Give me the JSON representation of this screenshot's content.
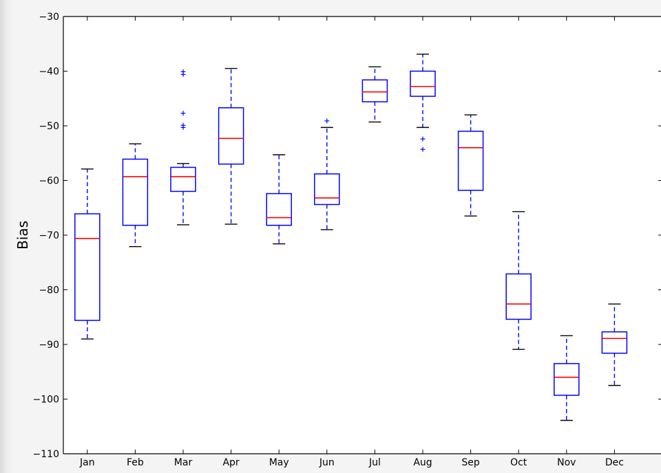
{
  "chart_data": {
    "type": "box",
    "title": "",
    "xlabel": "",
    "ylabel": "Bias",
    "ylim": [
      -110,
      -30
    ],
    "yticks": [
      -30,
      -40,
      -50,
      -60,
      -70,
      -80,
      -90,
      -100,
      -110
    ],
    "grid": false,
    "legend": "none",
    "colors": {
      "box": "#0000ff",
      "median": "#ff0000",
      "cap": "#000000",
      "axis": "#000000",
      "plot_bg": "#ffffff"
    },
    "categories": [
      "Jan",
      "Feb",
      "Mar",
      "Apr",
      "May",
      "Jun",
      "Jul",
      "Aug",
      "Sep",
      "Oct",
      "Nov",
      "Dec"
    ],
    "boxes": [
      {
        "label": "Jan",
        "whisker_low": -89.0,
        "q1": -85.6,
        "median": -70.6,
        "q3": -66.1,
        "whisker_high": -57.9,
        "fliers": []
      },
      {
        "label": "Feb",
        "whisker_low": -72.1,
        "q1": -68.2,
        "median": -59.3,
        "q3": -56.1,
        "whisker_high": -53.3,
        "fliers": []
      },
      {
        "label": "Mar",
        "whisker_low": -68.1,
        "q1": -62.0,
        "median": -59.3,
        "q3": -57.6,
        "whisker_high": -56.9,
        "fliers": [
          -40.1,
          -40.6,
          -47.7,
          -49.9,
          -50.3
        ]
      },
      {
        "label": "Apr",
        "whisker_low": -68.0,
        "q1": -57.0,
        "median": -52.3,
        "q3": -46.7,
        "whisker_high": -39.5,
        "fliers": []
      },
      {
        "label": "May",
        "whisker_low": -71.6,
        "q1": -68.2,
        "median": -66.8,
        "q3": -62.4,
        "whisker_high": -55.3,
        "fliers": []
      },
      {
        "label": "Jun",
        "whisker_low": -69.0,
        "q1": -64.4,
        "median": -63.2,
        "q3": -58.8,
        "whisker_high": -50.3,
        "fliers": [
          -49.1
        ]
      },
      {
        "label": "Jul",
        "whisker_low": -49.3,
        "q1": -45.6,
        "median": -43.8,
        "q3": -41.6,
        "whisker_high": -39.2,
        "fliers": []
      },
      {
        "label": "Aug",
        "whisker_low": -50.3,
        "q1": -44.6,
        "median": -42.8,
        "q3": -40.0,
        "whisker_high": -36.9,
        "fliers": [
          -52.4,
          -54.3
        ]
      },
      {
        "label": "Sep",
        "whisker_low": -66.5,
        "q1": -61.8,
        "median": -54.0,
        "q3": -51.0,
        "whisker_high": -48.0,
        "fliers": []
      },
      {
        "label": "Oct",
        "whisker_low": -90.9,
        "q1": -85.4,
        "median": -82.6,
        "q3": -77.1,
        "whisker_high": -65.7,
        "fliers": []
      },
      {
        "label": "Nov",
        "whisker_low": -103.9,
        "q1": -99.3,
        "median": -96.0,
        "q3": -93.5,
        "whisker_high": -88.4,
        "fliers": []
      },
      {
        "label": "Dec",
        "whisker_low": -97.5,
        "q1": -91.6,
        "median": -88.9,
        "q3": -87.7,
        "whisker_high": -82.6,
        "fliers": []
      }
    ]
  }
}
